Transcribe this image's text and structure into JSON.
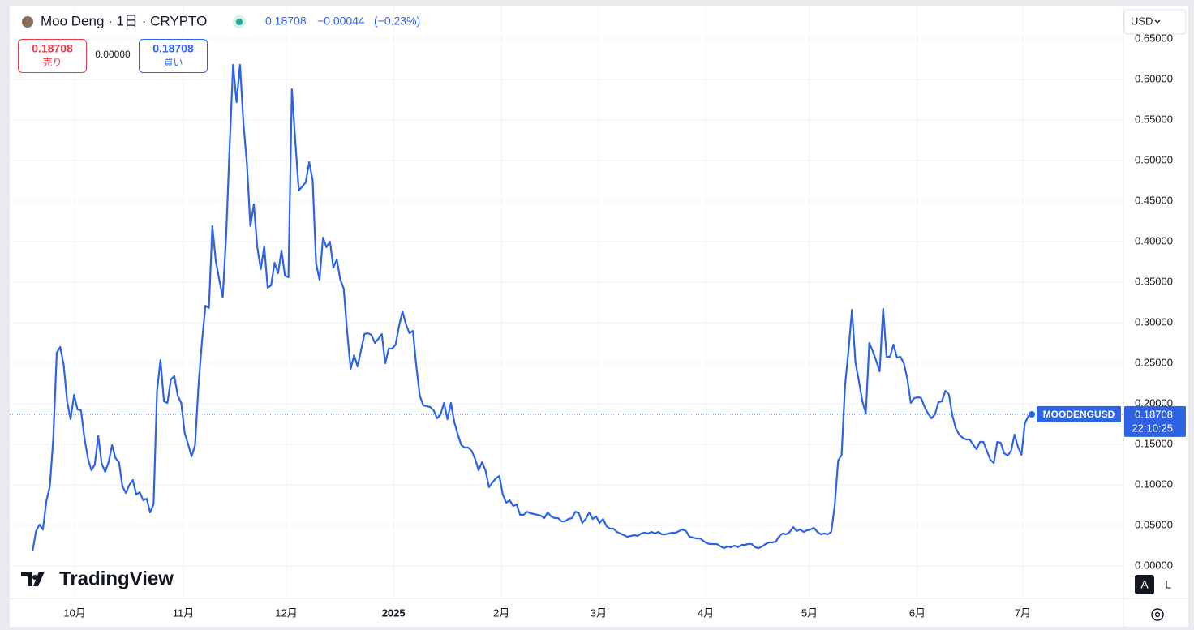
{
  "header": {
    "symbol": "Moo Deng · 1日 · CRYPTO",
    "last": "0.18708",
    "change": "−0.00044",
    "change_pct": "(−0.23%)"
  },
  "trade": {
    "sell_price": "0.18708",
    "sell_label": "売り",
    "spread": "0.00000",
    "buy_price": "0.18708",
    "buy_label": "買い"
  },
  "currency": "USD",
  "logo": "TradingView",
  "scale_buttons": [
    "A",
    "L"
  ],
  "chart_data": {
    "type": "line",
    "series": [
      {
        "name": "MOODENGUSD",
        "color": "#2f63e6",
        "values": [
          0.018,
          0.043,
          0.051,
          0.045,
          0.08,
          0.098,
          0.158,
          0.263,
          0.27,
          0.248,
          0.203,
          0.181,
          0.211,
          0.193,
          0.192,
          0.158,
          0.133,
          0.118,
          0.125,
          0.16,
          0.126,
          0.116,
          0.128,
          0.149,
          0.133,
          0.128,
          0.098,
          0.09,
          0.1,
          0.106,
          0.088,
          0.091,
          0.081,
          0.083,
          0.066,
          0.076,
          0.216,
          0.254,
          0.203,
          0.201,
          0.23,
          0.234,
          0.21,
          0.201,
          0.164,
          0.15,
          0.135,
          0.149,
          0.223,
          0.277,
          0.321,
          0.318,
          0.419,
          0.376,
          0.353,
          0.331,
          0.408,
          0.518,
          0.618,
          0.572,
          0.618,
          0.545,
          0.496,
          0.419,
          0.446,
          0.393,
          0.366,
          0.394,
          0.343,
          0.346,
          0.374,
          0.361,
          0.389,
          0.358,
          0.356,
          0.588,
          0.523,
          0.463,
          0.468,
          0.473,
          0.498,
          0.476,
          0.373,
          0.353,
          0.405,
          0.393,
          0.4,
          0.368,
          0.378,
          0.353,
          0.342,
          0.288,
          0.243,
          0.26,
          0.246,
          0.266,
          0.286,
          0.287,
          0.285,
          0.275,
          0.28,
          0.286,
          0.25,
          0.268,
          0.268,
          0.273,
          0.296,
          0.314,
          0.298,
          0.287,
          0.29,
          0.246,
          0.21,
          0.198,
          0.197,
          0.196,
          0.192,
          0.182,
          0.187,
          0.201,
          0.181,
          0.201,
          0.177,
          0.162,
          0.149,
          0.146,
          0.146,
          0.142,
          0.132,
          0.118,
          0.128,
          0.118,
          0.097,
          0.103,
          0.108,
          0.111,
          0.088,
          0.078,
          0.081,
          0.074,
          0.076,
          0.063,
          0.063,
          0.067,
          0.065,
          0.064,
          0.063,
          0.062,
          0.059,
          0.066,
          0.061,
          0.059,
          0.059,
          0.055,
          0.055,
          0.058,
          0.059,
          0.067,
          0.065,
          0.053,
          0.058,
          0.066,
          0.058,
          0.061,
          0.053,
          0.058,
          0.049,
          0.046,
          0.046,
          0.042,
          0.04,
          0.038,
          0.036,
          0.037,
          0.038,
          0.037,
          0.04,
          0.041,
          0.04,
          0.042,
          0.04,
          0.042,
          0.039,
          0.039,
          0.04,
          0.041,
          0.041,
          0.043,
          0.045,
          0.043,
          0.036,
          0.035,
          0.034,
          0.034,
          0.031,
          0.028,
          0.027,
          0.027,
          0.027,
          0.024,
          0.022,
          0.024,
          0.023,
          0.025,
          0.023,
          0.026,
          0.026,
          0.027,
          0.027,
          0.023,
          0.022,
          0.024,
          0.027,
          0.029,
          0.029,
          0.03,
          0.037,
          0.04,
          0.039,
          0.042,
          0.048,
          0.043,
          0.045,
          0.042,
          0.044,
          0.045,
          0.047,
          0.042,
          0.039,
          0.04,
          0.039,
          0.042,
          0.074,
          0.13,
          0.137,
          0.223,
          0.266,
          0.316,
          0.251,
          0.228,
          0.203,
          0.188,
          0.275,
          0.265,
          0.253,
          0.24,
          0.317,
          0.258,
          0.258,
          0.273,
          0.257,
          0.258,
          0.25,
          0.231,
          0.201,
          0.207,
          0.208,
          0.207,
          0.196,
          0.188,
          0.182,
          0.187,
          0.202,
          0.203,
          0.216,
          0.212,
          0.186,
          0.17,
          0.162,
          0.158,
          0.156,
          0.156,
          0.15,
          0.144,
          0.153,
          0.153,
          0.142,
          0.131,
          0.127,
          0.153,
          0.152,
          0.139,
          0.136,
          0.142,
          0.162,
          0.147,
          0.137,
          0.176,
          0.185,
          0.187
        ]
      }
    ],
    "last_price": {
      "value": 0.18708,
      "label": "0.18708"
    },
    "countdown": "22:10:25",
    "xlim": [
      -6.6,
      315.5
    ],
    "xticks": [
      {
        "value": 12.2,
        "label": "10月"
      },
      {
        "value": 43.6,
        "label": "11月"
      },
      {
        "value": 73.4,
        "label": "12月"
      },
      {
        "value": 104.4,
        "label": "2025"
      },
      {
        "value": 135.6,
        "label": "2月"
      },
      {
        "value": 163.7,
        "label": "3月"
      },
      {
        "value": 194.7,
        "label": "4月"
      },
      {
        "value": 224.7,
        "label": "5月"
      },
      {
        "value": 255.9,
        "label": "6月"
      },
      {
        "value": 286.4,
        "label": "7月"
      }
    ],
    "ylim": [
      -0.04,
      0.69
    ],
    "yticks": [
      {
        "value": 0,
        "label": "0.00000"
      },
      {
        "value": 0.05,
        "label": "0.05000"
      },
      {
        "value": 0.1,
        "label": "0.10000"
      },
      {
        "value": 0.15,
        "label": "0.15000"
      },
      {
        "value": 0.2,
        "label": "0.20000"
      },
      {
        "value": 0.25,
        "label": "0.25000"
      },
      {
        "value": 0.3,
        "label": "0.30000"
      },
      {
        "value": 0.35,
        "label": "0.35000"
      },
      {
        "value": 0.4,
        "label": "0.40000"
      },
      {
        "value": 0.45,
        "label": "0.45000"
      },
      {
        "value": 0.5,
        "label": "0.50000"
      },
      {
        "value": 0.55,
        "label": "0.55000"
      },
      {
        "value": 0.6,
        "label": "0.60000"
      },
      {
        "value": 0.65,
        "label": "0.65000"
      }
    ],
    "grid": true
  }
}
